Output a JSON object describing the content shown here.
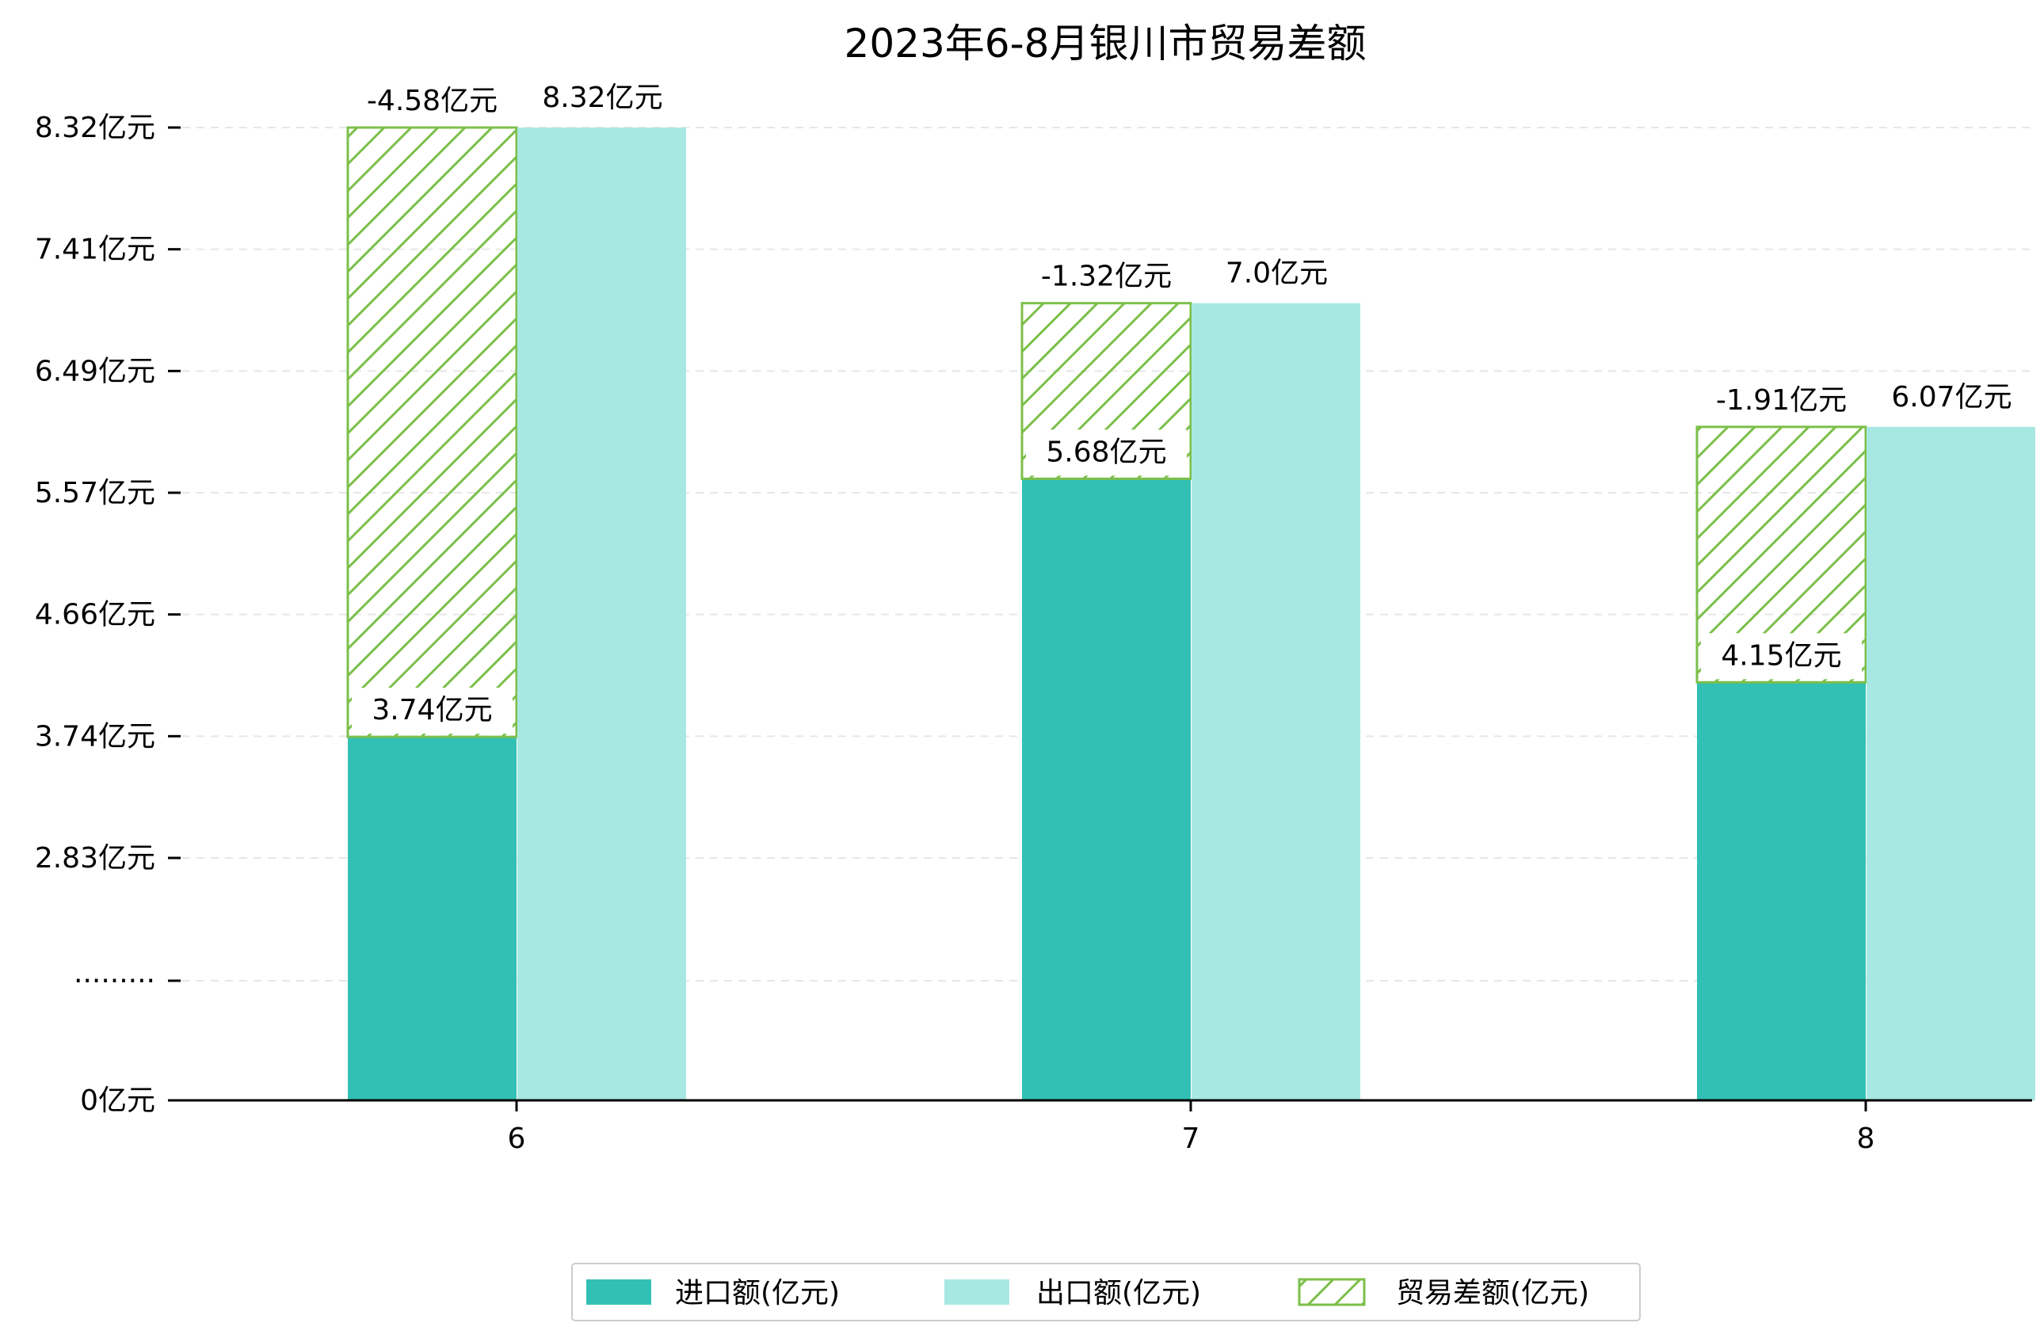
{
  "chart_data": {
    "type": "bar",
    "title": "2023年6-8月银川市贸易差额",
    "categories": [
      "6",
      "7",
      "8"
    ],
    "series": [
      {
        "name": "进口额(亿元)",
        "values": [
          3.74,
          5.68,
          4.15
        ],
        "color": "#32c0b4"
      },
      {
        "name": "出口额(亿元)",
        "values": [
          8.32,
          7.0,
          6.07
        ],
        "color": "#a8e8e2"
      },
      {
        "name": "贸易差额(亿元)",
        "values": [
          -4.58,
          -1.32,
          -1.91
        ],
        "color": "#7cbf4a",
        "pattern": "hatch"
      }
    ],
    "import_labels": [
      "3.74亿元",
      "5.68亿元",
      "4.15亿元"
    ],
    "export_labels": [
      "8.32亿元",
      "7.0亿元",
      "6.07亿元"
    ],
    "balance_labels": [
      "-4.58亿元",
      "-1.32亿元",
      "-1.91亿元"
    ],
    "yticks": [
      {
        "label": "0亿元"
      },
      {
        "label": "·········"
      },
      {
        "label": "2.83亿元"
      },
      {
        "label": "3.74亿元"
      },
      {
        "label": "4.66亿元"
      },
      {
        "label": "5.57亿元"
      },
      {
        "label": "6.49亿元"
      },
      {
        "label": "7.41亿元"
      },
      {
        "label": "8.32亿元"
      }
    ],
    "grid": "horizontal-dashed",
    "legend_position": "bottom-center"
  }
}
